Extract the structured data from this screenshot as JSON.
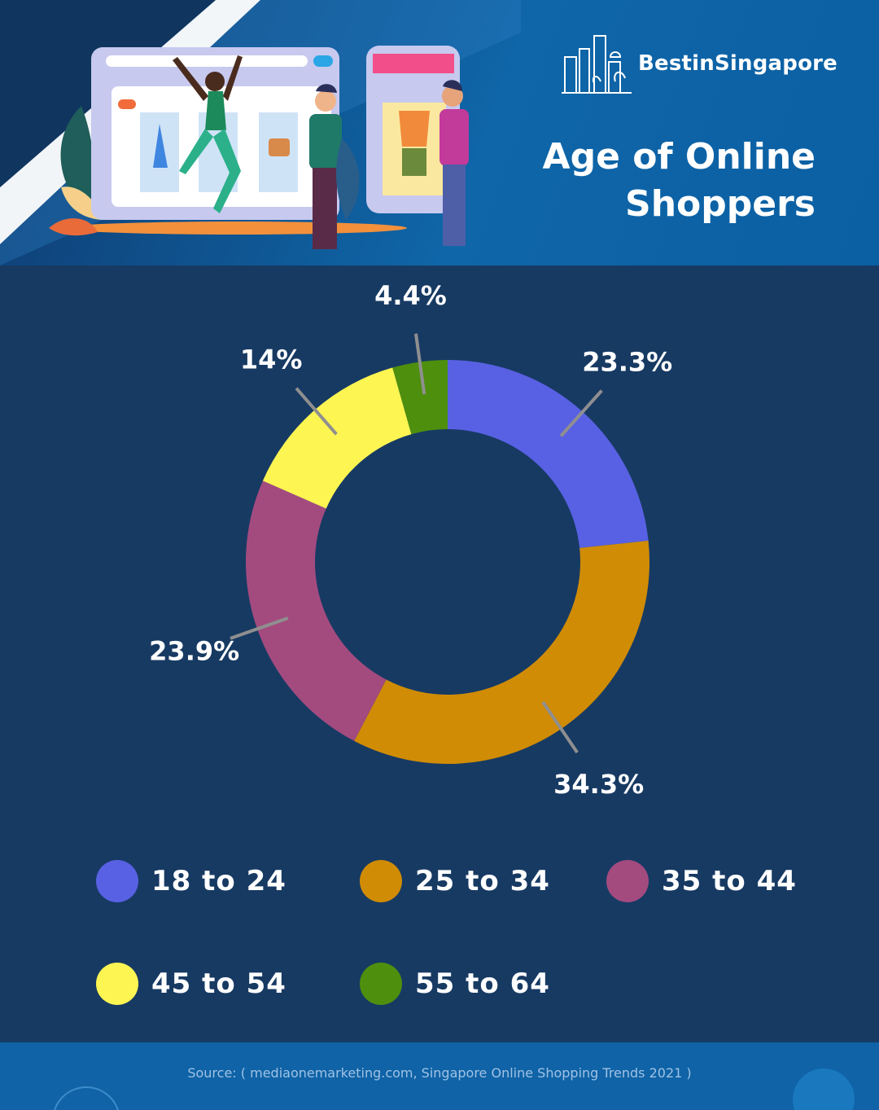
{
  "brand": {
    "name": "BestinSingapore"
  },
  "title": "Age of Online Shoppers",
  "chart_data": {
    "type": "pie",
    "donut": true,
    "title": "Age of Online Shoppers",
    "categories": [
      "18 to 24",
      "25 to 34",
      "35 to 44",
      "45 to 54",
      "55 to 64"
    ],
    "values": [
      23.3,
      34.3,
      23.9,
      14,
      4.4
    ],
    "data_labels": [
      "23.3%",
      "34.3%",
      "23.9%",
      "14%",
      "4.4%"
    ],
    "colors": [
      "#5861e3",
      "#d08c05",
      "#a34b7f",
      "#fdf552",
      "#4e8f0d"
    ],
    "legend": {
      "placement": "bottom"
    }
  },
  "source": "Source: ( mediaonemarketing.com, Singapore Online Shopping Trends 2021 )",
  "colors": {
    "background": "#173a63",
    "header": "#0f66a8",
    "footer": "#0f63a6",
    "leader_line": "#8f8f8f",
    "text": "#ffffff"
  },
  "icons": [
    "city-skyline-logo-icon",
    "shopping-illustration"
  ]
}
